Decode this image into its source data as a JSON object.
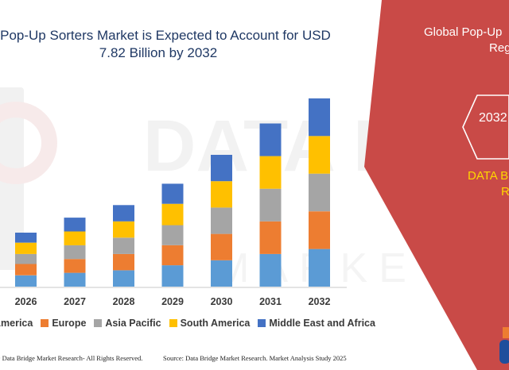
{
  "title": {
    "line1": "al Pop-Up Sorters Market is Expected to Account for USD",
    "line2": "7.82 Billion by 2032"
  },
  "side_panel": {
    "heading_line1": "Global Pop-Up",
    "heading_line2": "Reg",
    "hex_label": "2032",
    "brand_line1": "DATA B",
    "brand_line2": "R"
  },
  "legend": [
    {
      "label": "America",
      "color": "#5b9bd5"
    },
    {
      "label": "Europe",
      "color": "#ed7d31"
    },
    {
      "label": "Asia Pacific",
      "color": "#a5a5a5"
    },
    {
      "label": "South America",
      "color": "#ffc000"
    },
    {
      "label": "Middle East and Africa",
      "color": "#4472c4"
    }
  ],
  "footer": {
    "left": "© Data Bridge Market Research-  All Rights Reserved.",
    "right": "Source: Data Bridge Market Research. Market Analysis Study 2025"
  },
  "colors": {
    "panel_red": "#c94a47",
    "title_blue": "#1f3864",
    "accent_yellow": "#ffd700"
  },
  "chart_data": {
    "type": "bar",
    "stacked": true,
    "categories": [
      "2026",
      "2027",
      "2028",
      "2029",
      "2030",
      "2031",
      "2032"
    ],
    "series": [
      {
        "name": "America",
        "color": "#5b9bd5",
        "values": [
          0.9,
          1.1,
          1.3,
          1.7,
          2.1,
          2.6,
          3.0
        ]
      },
      {
        "name": "Europe",
        "color": "#ed7d31",
        "values": [
          0.9,
          1.1,
          1.3,
          1.6,
          2.1,
          2.6,
          3.0
        ]
      },
      {
        "name": "Asia Pacific",
        "color": "#a5a5a5",
        "values": [
          0.8,
          1.1,
          1.3,
          1.6,
          2.1,
          2.6,
          3.0
        ]
      },
      {
        "name": "South America",
        "color": "#ffc000",
        "values": [
          0.9,
          1.1,
          1.3,
          1.7,
          2.1,
          2.6,
          3.0
        ]
      },
      {
        "name": "Middle East and Africa",
        "color": "#4472c4",
        "values": [
          0.8,
          1.1,
          1.3,
          1.6,
          2.1,
          2.6,
          3.0
        ]
      }
    ],
    "xlabel": "",
    "ylabel": "",
    "ylim": [
      0,
      15.5
    ],
    "grid": false,
    "legend_position": "bottom"
  }
}
